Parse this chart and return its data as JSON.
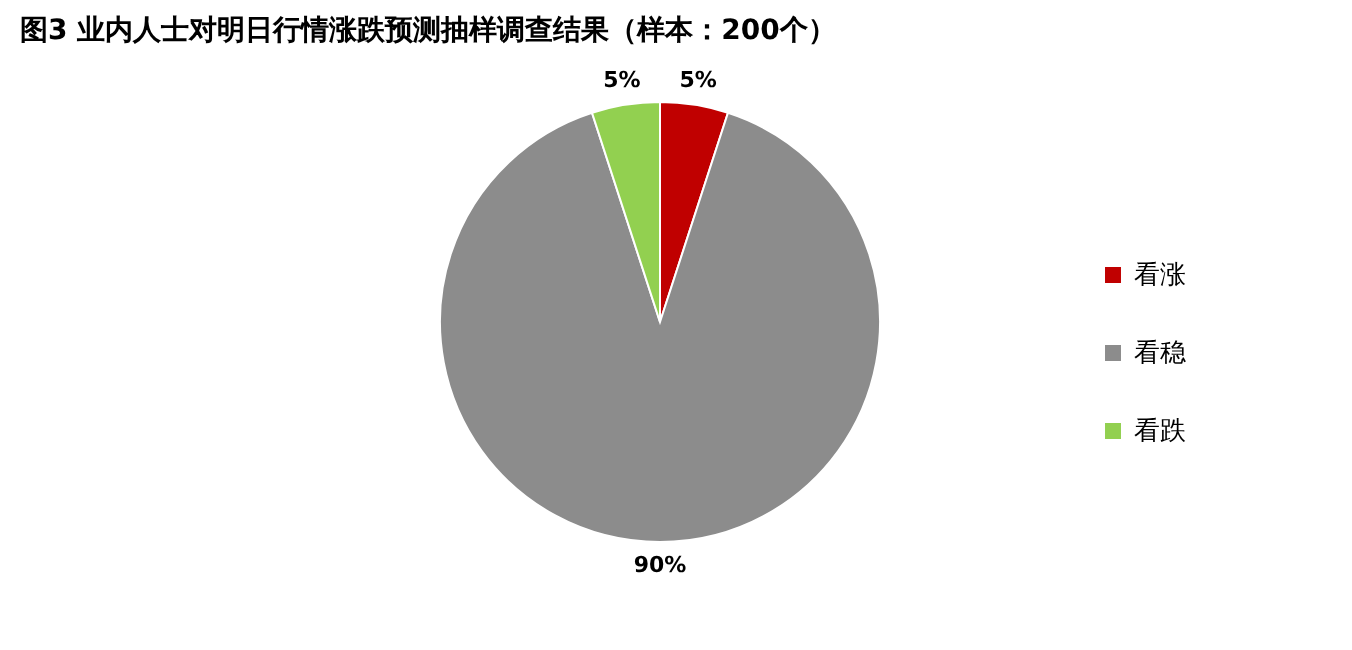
{
  "chart_data": {
    "type": "pie",
    "title": "图3 业内人士对明日行情涨跌预测抽样调查结果（样本：200个）",
    "categories": [
      "看涨",
      "看稳",
      "看跌"
    ],
    "values": [
      5,
      90,
      5
    ],
    "colors": [
      "#c00000",
      "#8c8c8c",
      "#92d050"
    ],
    "value_labels": [
      "5%",
      "90%",
      "5%"
    ],
    "legend": "right"
  }
}
